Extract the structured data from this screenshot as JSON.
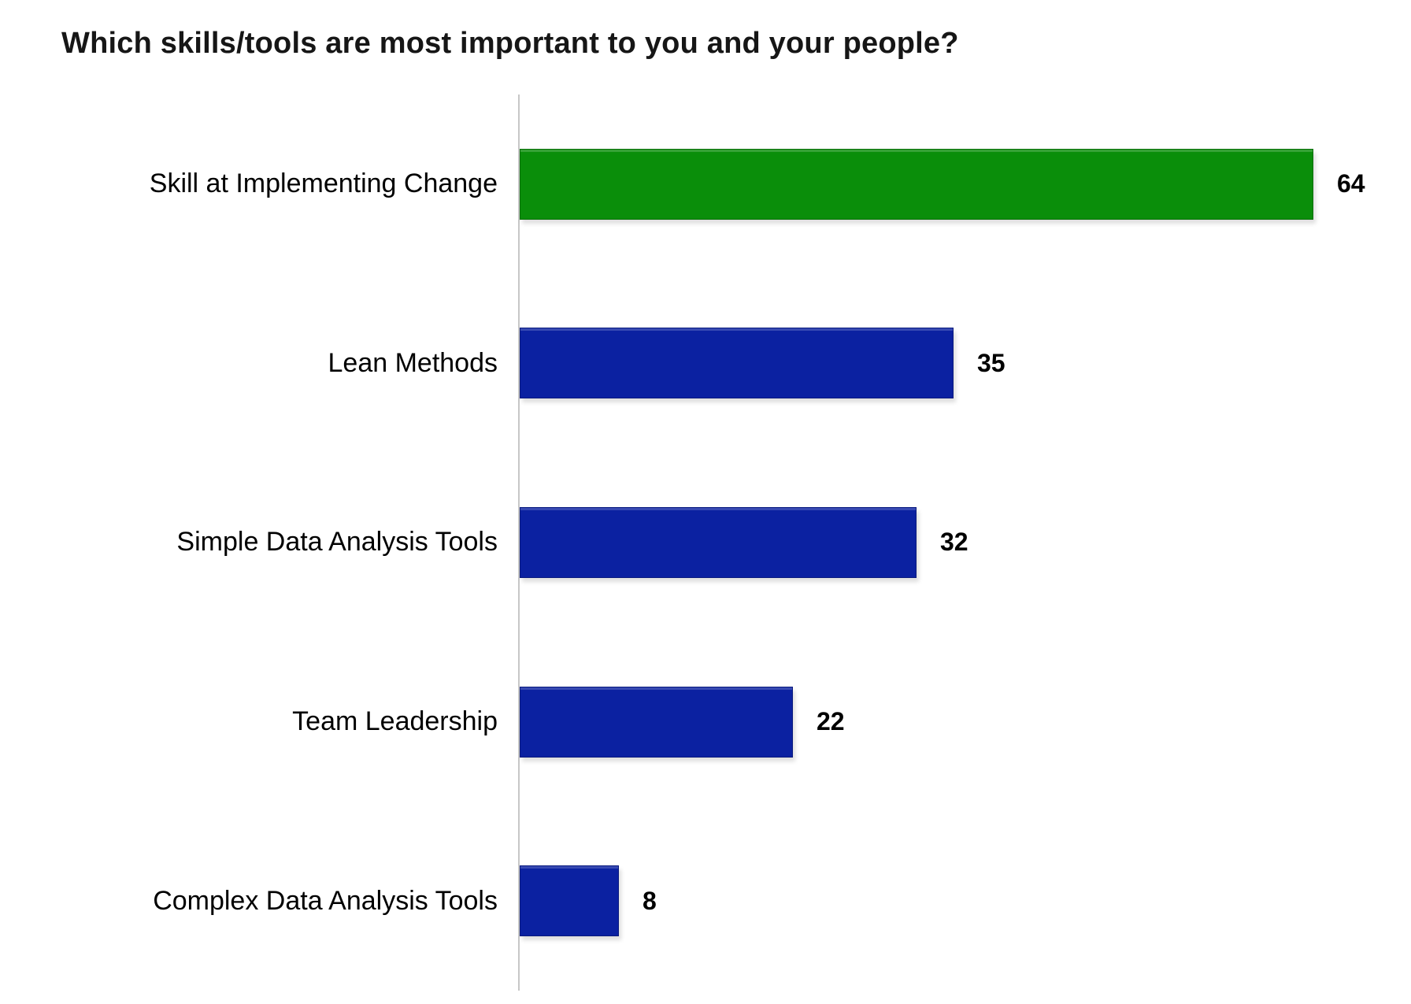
{
  "chart_data": {
    "type": "bar",
    "orientation": "horizontal",
    "title": "Which skills/tools are most important to you and your people?",
    "categories": [
      "Skill at Implementing Change",
      "Lean Methods",
      "Simple Data Analysis Tools",
      "Team Leadership",
      "Complex Data Analysis Tools"
    ],
    "values": [
      64,
      35,
      32,
      22,
      8
    ],
    "data_labels": [
      "64",
      "35",
      "32",
      "22",
      "8"
    ],
    "bar_colors": [
      "#0A8E0A",
      "#0B21A1",
      "#0B21A1",
      "#0B21A1",
      "#0B21A1"
    ],
    "highlight_color": "#0A8E0A",
    "default_color": "#0B21A1",
    "axis_color": "#C7C7C7",
    "text_color": "#000000",
    "background_color": "#FFFFFF",
    "scale_max": 64,
    "xlabel": "",
    "ylabel": "",
    "legend": "none",
    "grid": false,
    "value_labels_shown": true
  }
}
